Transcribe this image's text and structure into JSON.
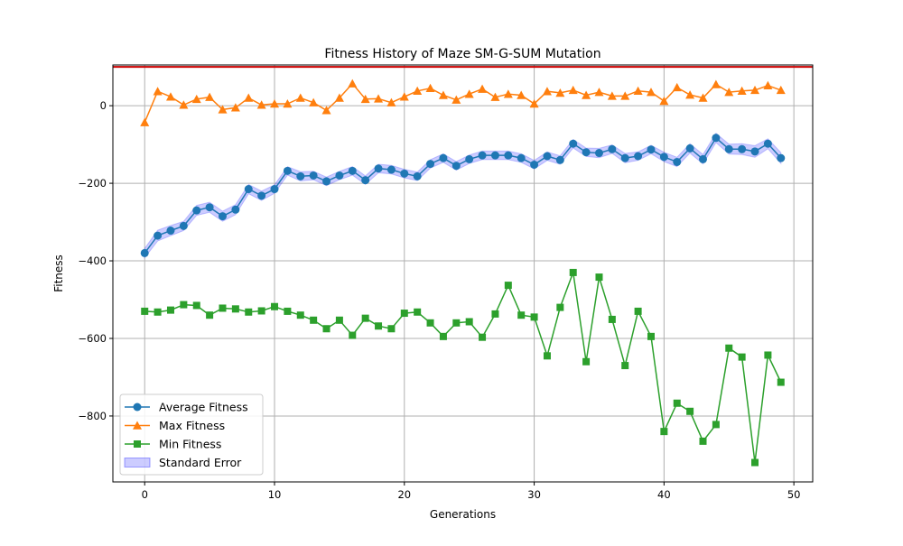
{
  "chart_data": {
    "type": "line",
    "title": "Fitness History of Maze SM-G-SUM Mutation",
    "xlabel": "Generations",
    "ylabel": "Fitness",
    "xlim": [
      -2.45,
      51.45
    ],
    "ylim": [
      -970,
      105
    ],
    "x_ticks": [
      0,
      10,
      20,
      30,
      40,
      50
    ],
    "y_ticks": [
      0,
      -200,
      -400,
      -600,
      -800
    ],
    "x_tick_labels": [
      "0",
      "10",
      "20",
      "30",
      "40",
      "50"
    ],
    "y_tick_labels": [
      "0",
      "−200",
      "−400",
      "−600",
      "−800"
    ],
    "grid": true,
    "legend_position": "lower-left",
    "x": [
      0,
      1,
      2,
      3,
      4,
      5,
      6,
      7,
      8,
      9,
      10,
      11,
      12,
      13,
      14,
      15,
      16,
      17,
      18,
      19,
      20,
      21,
      22,
      23,
      24,
      25,
      26,
      27,
      28,
      29,
      30,
      31,
      32,
      33,
      34,
      35,
      36,
      37,
      38,
      39,
      40,
      41,
      42,
      43,
      44,
      45,
      46,
      47,
      48,
      49
    ],
    "series": [
      {
        "name": "Average Fitness",
        "color": "#1f77b4",
        "marker": "circle",
        "values": [
          -380,
          -335,
          -322,
          -310,
          -270,
          -262,
          -285,
          -268,
          -215,
          -232,
          -215,
          -168,
          -182,
          -180,
          -195,
          -180,
          -168,
          -192,
          -162,
          -165,
          -175,
          -182,
          -150,
          -135,
          -155,
          -138,
          -128,
          -128,
          -128,
          -135,
          -152,
          -130,
          -140,
          -98,
          -120,
          -122,
          -112,
          -135,
          -130,
          -113,
          -132,
          -145,
          -110,
          -138,
          -83,
          -112,
          -112,
          -118,
          -98,
          -135
        ]
      },
      {
        "name": "Max Fitness",
        "color": "#ff7f0e",
        "marker": "triangle",
        "values": [
          -43,
          37,
          23,
          2,
          17,
          22,
          -10,
          -5,
          20,
          2,
          5,
          5,
          20,
          8,
          -12,
          20,
          57,
          17,
          18,
          8,
          23,
          38,
          45,
          27,
          15,
          30,
          43,
          22,
          30,
          27,
          5,
          37,
          33,
          40,
          27,
          35,
          25,
          25,
          38,
          35,
          12,
          47,
          28,
          20,
          55,
          35,
          38,
          40,
          52,
          40
        ]
      },
      {
        "name": "Min Fitness",
        "color": "#2ca02c",
        "marker": "square",
        "values": [
          -530,
          -532,
          -527,
          -513,
          -515,
          -540,
          -522,
          -524,
          -532,
          -529,
          -518,
          -530,
          -540,
          -553,
          -575,
          -553,
          -592,
          -548,
          -568,
          -575,
          -535,
          -532,
          -560,
          -595,
          -560,
          -557,
          -597,
          -537,
          -463,
          -540,
          -545,
          -645,
          -520,
          -430,
          -660,
          -442,
          -551,
          -670,
          -530,
          -595,
          -840,
          -767,
          -788,
          -865,
          -822,
          -625,
          -648,
          -920,
          -643,
          -713
        ]
      }
    ],
    "error_band": {
      "name": "Standard Error",
      "color": "#0000ff",
      "width": [
        12,
        14,
        13,
        12,
        13,
        13,
        13,
        13,
        12,
        12,
        11,
        11,
        12,
        11,
        11,
        11,
        11,
        11,
        11,
        11,
        11,
        11,
        11,
        11,
        11,
        11,
        11,
        11,
        11,
        11,
        11,
        11,
        11,
        11,
        11,
        12,
        11,
        12,
        11,
        11,
        12,
        12,
        12,
        12,
        12,
        13,
        14,
        15,
        13,
        14
      ]
    },
    "reference_line": {
      "y": 100,
      "color": "#cc0000"
    }
  }
}
